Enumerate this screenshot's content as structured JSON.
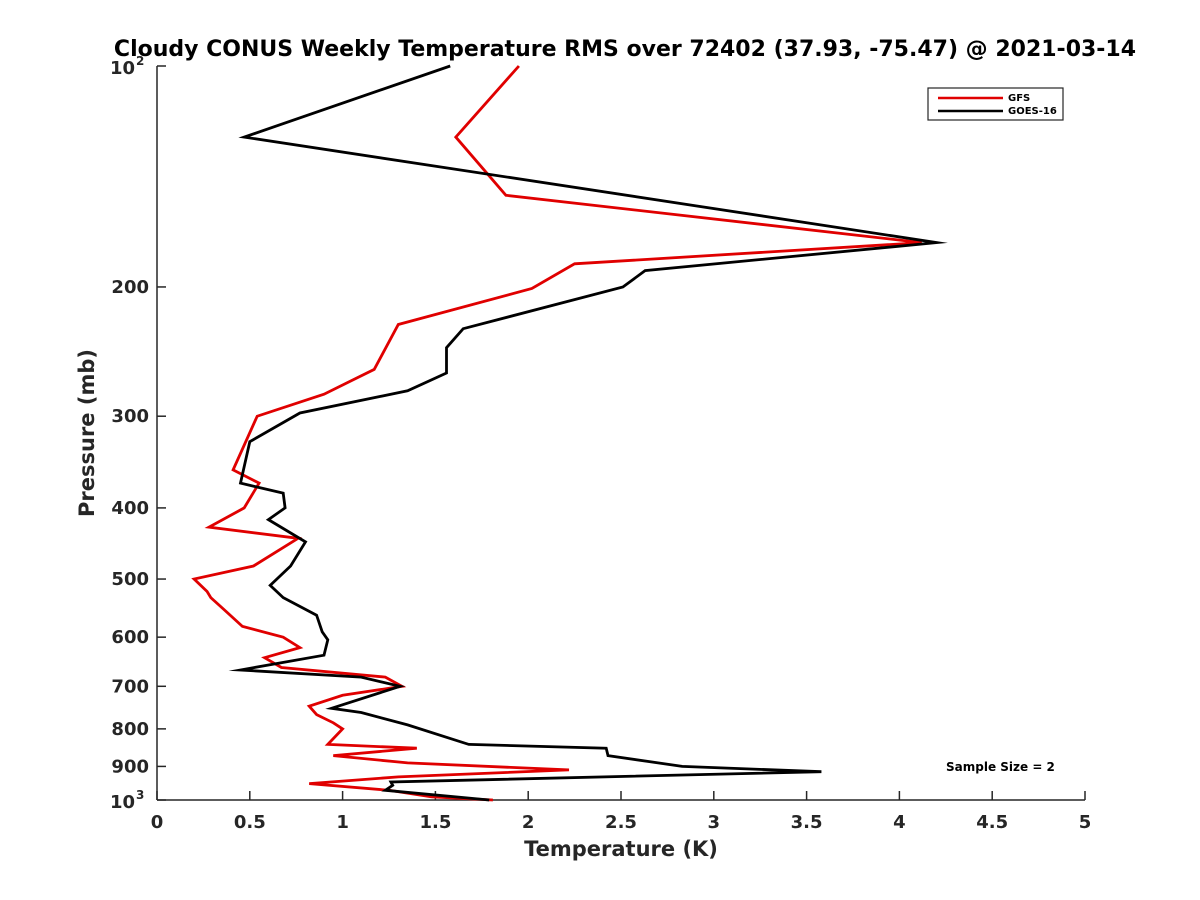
{
  "chart_data": {
    "type": "line",
    "title": "Cloudy CONUS Weekly Temperature RMS over 72402 (37.93, -75.47) @ 2021-03-14",
    "xlabel": "Temperature (K)",
    "ylabel": "Pressure (mb)",
    "xlim": [
      0,
      5
    ],
    "ylim": [
      100,
      1000
    ],
    "y_scale": "log",
    "y_reversed": true,
    "x_ticks": [
      0,
      0.5,
      1,
      1.5,
      2,
      2.5,
      3,
      3.5,
      4,
      4.5,
      5
    ],
    "x_tick_labels": [
      "0",
      "0.5",
      "1",
      "1.5",
      "2",
      "2.5",
      "3",
      "3.5",
      "4",
      "4.5",
      "5"
    ],
    "y_ticks": [
      {
        "value": 100,
        "base": "10",
        "exp": "2"
      },
      {
        "value": 200,
        "label": "200"
      },
      {
        "value": 300,
        "label": "300"
      },
      {
        "value": 400,
        "label": "400"
      },
      {
        "value": 500,
        "label": "500"
      },
      {
        "value": 600,
        "label": "600"
      },
      {
        "value": 700,
        "label": "700"
      },
      {
        "value": 800,
        "label": "800"
      },
      {
        "value": 900,
        "label": "900"
      },
      {
        "value": 1000,
        "base": "10",
        "exp": "3"
      }
    ],
    "legend_position": "top-right",
    "grid": false,
    "annotation": "Sample Size = 2",
    "series": [
      {
        "name": "GFS",
        "color": "#e00000",
        "points": [
          [
            1.95,
            100
          ],
          [
            1.61,
            125
          ],
          [
            1.88,
            150
          ],
          [
            4.12,
            174
          ],
          [
            2.25,
            186
          ],
          [
            2.02,
            201
          ],
          [
            1.3,
            225
          ],
          [
            1.17,
            259
          ],
          [
            0.9,
            280
          ],
          [
            0.54,
            300
          ],
          [
            0.41,
            355
          ],
          [
            0.55,
            370
          ],
          [
            0.47,
            400
          ],
          [
            0.28,
            425
          ],
          [
            0.76,
            440
          ],
          [
            0.52,
            480
          ],
          [
            0.2,
            500
          ],
          [
            0.27,
            520
          ],
          [
            0.29,
            530
          ],
          [
            0.36,
            550
          ],
          [
            0.46,
            580
          ],
          [
            0.68,
            600
          ],
          [
            0.77,
            620
          ],
          [
            0.58,
            640
          ],
          [
            0.67,
            660
          ],
          [
            1.23,
            680
          ],
          [
            1.32,
            700
          ],
          [
            1.0,
            720
          ],
          [
            0.82,
            745
          ],
          [
            0.86,
            765
          ],
          [
            0.95,
            785
          ],
          [
            1.0,
            800
          ],
          [
            0.92,
            840
          ],
          [
            1.4,
            850
          ],
          [
            0.95,
            870
          ],
          [
            1.35,
            890
          ],
          [
            2.22,
            910
          ],
          [
            1.3,
            930
          ],
          [
            0.82,
            950
          ],
          [
            1.25,
            970
          ],
          [
            1.48,
            990
          ],
          [
            1.81,
            1000
          ]
        ]
      },
      {
        "name": "GOES-16",
        "color": "#000000",
        "points": [
          [
            1.58,
            100
          ],
          [
            0.47,
            125
          ],
          [
            2.9,
            155
          ],
          [
            4.2,
            174
          ],
          [
            2.63,
            190
          ],
          [
            2.51,
            200
          ],
          [
            1.65,
            228
          ],
          [
            1.56,
            242
          ],
          [
            1.56,
            262
          ],
          [
            1.35,
            277
          ],
          [
            0.77,
            297
          ],
          [
            0.5,
            325
          ],
          [
            0.45,
            370
          ],
          [
            0.68,
            382
          ],
          [
            0.69,
            400
          ],
          [
            0.6,
            415
          ],
          [
            0.8,
            445
          ],
          [
            0.72,
            480
          ],
          [
            0.61,
            510
          ],
          [
            0.68,
            530
          ],
          [
            0.86,
            560
          ],
          [
            0.89,
            590
          ],
          [
            0.92,
            605
          ],
          [
            0.9,
            635
          ],
          [
            0.45,
            665
          ],
          [
            1.1,
            680
          ],
          [
            1.31,
            700
          ],
          [
            0.94,
            750
          ],
          [
            1.1,
            760
          ],
          [
            1.35,
            790
          ],
          [
            1.68,
            840
          ],
          [
            2.42,
            850
          ],
          [
            2.43,
            870
          ],
          [
            2.83,
            900
          ],
          [
            3.58,
            915
          ],
          [
            1.26,
            945
          ],
          [
            1.27,
            955
          ],
          [
            1.23,
            970
          ],
          [
            1.79,
            1000
          ]
        ]
      }
    ]
  }
}
